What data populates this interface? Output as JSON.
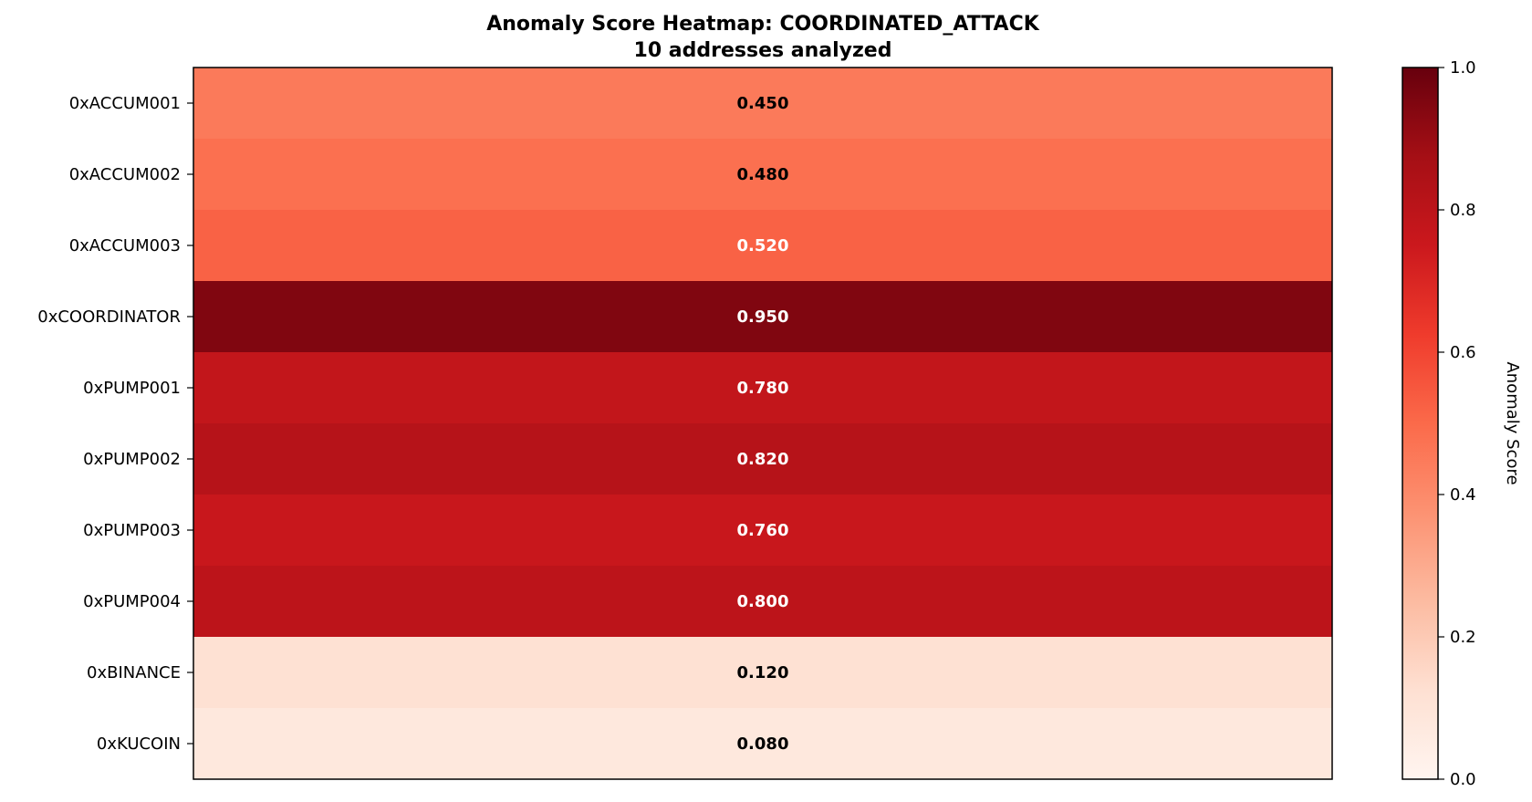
{
  "chart_data": {
    "type": "heatmap",
    "title": "Anomaly Score Heatmap: COORDINATED_ATTACK",
    "subtitle": "10 addresses analyzed",
    "rows": [
      "0xACCUM001",
      "0xACCUM002",
      "0xACCUM003",
      "0xCOORDINATOR",
      "0xPUMP001",
      "0xPUMP002",
      "0xPUMP003",
      "0xPUMP004",
      "0xBINANCE",
      "0xKUCOIN"
    ],
    "values": [
      0.45,
      0.48,
      0.52,
      0.95,
      0.78,
      0.82,
      0.76,
      0.8,
      0.12,
      0.08
    ],
    "value_labels": [
      "0.450",
      "0.480",
      "0.520",
      "0.950",
      "0.780",
      "0.820",
      "0.760",
      "0.800",
      "0.120",
      "0.080"
    ],
    "colormap": "Reds",
    "vmin": 0.0,
    "vmax": 1.0,
    "colorbar": {
      "label": "Anomaly Score",
      "ticks": [
        0.0,
        0.2,
        0.4,
        0.6,
        0.8,
        1.0
      ],
      "tick_labels": [
        "0.0",
        "0.2",
        "0.4",
        "0.6",
        "0.8",
        "1.0"
      ]
    },
    "xlabel": "",
    "ylabel": ""
  }
}
